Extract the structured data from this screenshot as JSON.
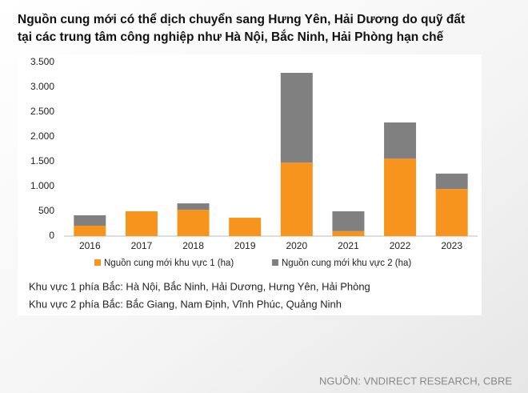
{
  "chart_data": {
    "type": "stacked_bar",
    "title": [
      "Nguồn cung mới có thể dịch chuyển sang Hưng Yên, Hải Dương do quỹ đất",
      "tại các trung tâm công nghiệp như Hà Nội, Bắc Ninh, Hải Phòng hạn chế"
    ],
    "categories": [
      "2016",
      "2017",
      "2018",
      "2019",
      "2020",
      "2021",
      "2022",
      "2023"
    ],
    "series": [
      {
        "name": "Nguồn cung mới khu vực 1 (ha)",
        "color": "#f7941d",
        "values": [
          210,
          500,
          530,
          370,
          1480,
          100,
          1560,
          950
        ]
      },
      {
        "name": "Nguồn cung mới khu vực 2 (ha)",
        "color": "#808080",
        "values": [
          210,
          0,
          130,
          0,
          1810,
          400,
          730,
          310
        ]
      }
    ],
    "ylim": [
      0,
      3500
    ],
    "yticks": [
      0,
      500,
      {
        "value": 1000,
        "label": "1.000"
      },
      {
        "value": 1500,
        "label": "1.500"
      },
      {
        "value": 2000,
        "label": "2.000"
      },
      {
        "value": 2500,
        "label": "2.500"
      },
      {
        "value": 3000,
        "label": "3.000"
      },
      {
        "value": 3500,
        "label": "3.500"
      }
    ],
    "grid": false,
    "legend": "bottom",
    "notes": [
      "Khu vực 1 phía Bắc: Hà Nội, Bắc Ninh, Hải Dương, Hưng Yên, Hải Phòng",
      "Khu vực 2 phía Bắc: Bắc Giang, Nam Định, Vĩnh Phúc, Quảng Ninh"
    ],
    "source": "NGUỒN: VNDIRECT RESEARCH, CBRE"
  }
}
